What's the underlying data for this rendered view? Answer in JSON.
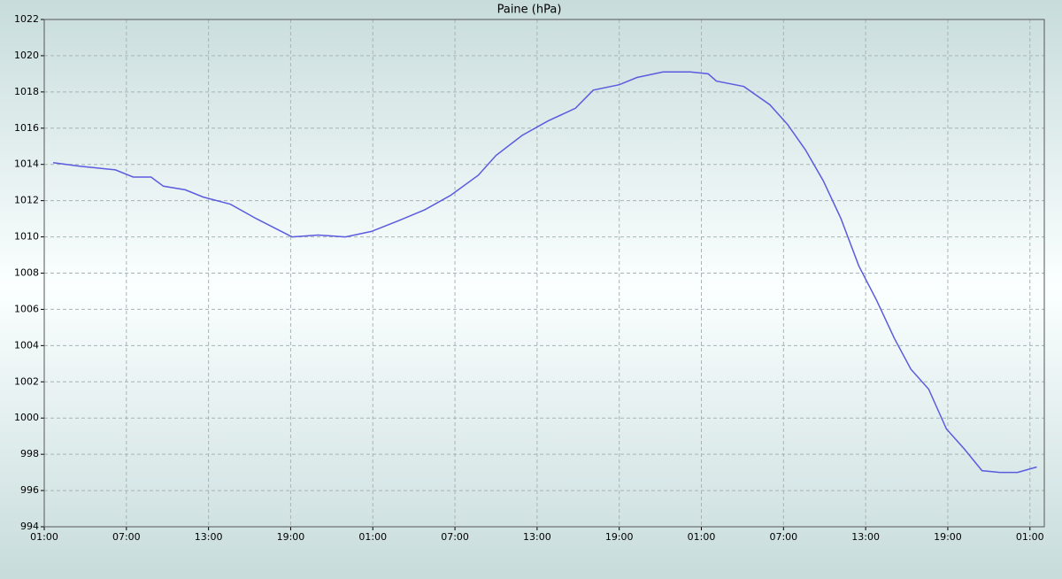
{
  "chart_data": {
    "type": "line",
    "title": "Paine (hPa)",
    "x": [
      0.65,
      2.6,
      5.2,
      6.5,
      7.8,
      8.7,
      10.3,
      11.6,
      13.6,
      15.5,
      16.8,
      18.1,
      20.0,
      22.0,
      23.9,
      25.9,
      27.8,
      29.7,
      31.7,
      33.0,
      34.9,
      36.8,
      38.8,
      40.1,
      42.0,
      43.3,
      45.2,
      47.2,
      48.5,
      49.1,
      51.1,
      53.0,
      54.3,
      55.6,
      56.9,
      58.2,
      59.5,
      60.8,
      62.1,
      63.3,
      64.6,
      65.9,
      67.2,
      68.5,
      69.8,
      71.1,
      72.5
    ],
    "series": [
      {
        "color": "#5b5bdf",
        "values": [
          1014.1,
          1013.9,
          1013.7,
          1013.3,
          1013.3,
          1012.8,
          1012.6,
          1012.2,
          1011.8,
          1011.0,
          1010.5,
          1010.0,
          1010.1,
          1010.0,
          1010.3,
          1010.9,
          1011.5,
          1012.3,
          1013.4,
          1014.5,
          1015.6,
          1016.4,
          1017.1,
          1018.1,
          1018.4,
          1018.8,
          1019.1,
          1019.1,
          1019.0,
          1018.6,
          1018.3,
          1017.3,
          1016.2,
          1014.8,
          1013.1,
          1011.0,
          1008.4,
          1006.5,
          1004.4,
          1002.7,
          1001.6,
          999.4,
          998.3,
          997.1,
          997.0,
          997.0,
          997.3
        ]
      }
    ],
    "xlim": [
      0,
      73.05
    ],
    "xticks": [
      {
        "value": 0,
        "label": "01:00"
      },
      {
        "value": 6,
        "label": "07:00"
      },
      {
        "value": 12,
        "label": "13:00"
      },
      {
        "value": 18,
        "label": "19:00"
      },
      {
        "value": 24,
        "label": "01:00"
      },
      {
        "value": 30,
        "label": "07:00"
      },
      {
        "value": 36,
        "label": "13:00"
      },
      {
        "value": 42,
        "label": "19:00"
      },
      {
        "value": 48,
        "label": "01:00"
      },
      {
        "value": 54,
        "label": "07:00"
      },
      {
        "value": 60,
        "label": "13:00"
      },
      {
        "value": 66,
        "label": "19:00"
      },
      {
        "value": 72,
        "label": "01:00"
      }
    ],
    "ylim": [
      994,
      1022
    ],
    "yticks": [
      994,
      996,
      998,
      1000,
      1002,
      1004,
      1006,
      1008,
      1010,
      1012,
      1014,
      1016,
      1018,
      1020,
      1022
    ],
    "grid": true
  }
}
